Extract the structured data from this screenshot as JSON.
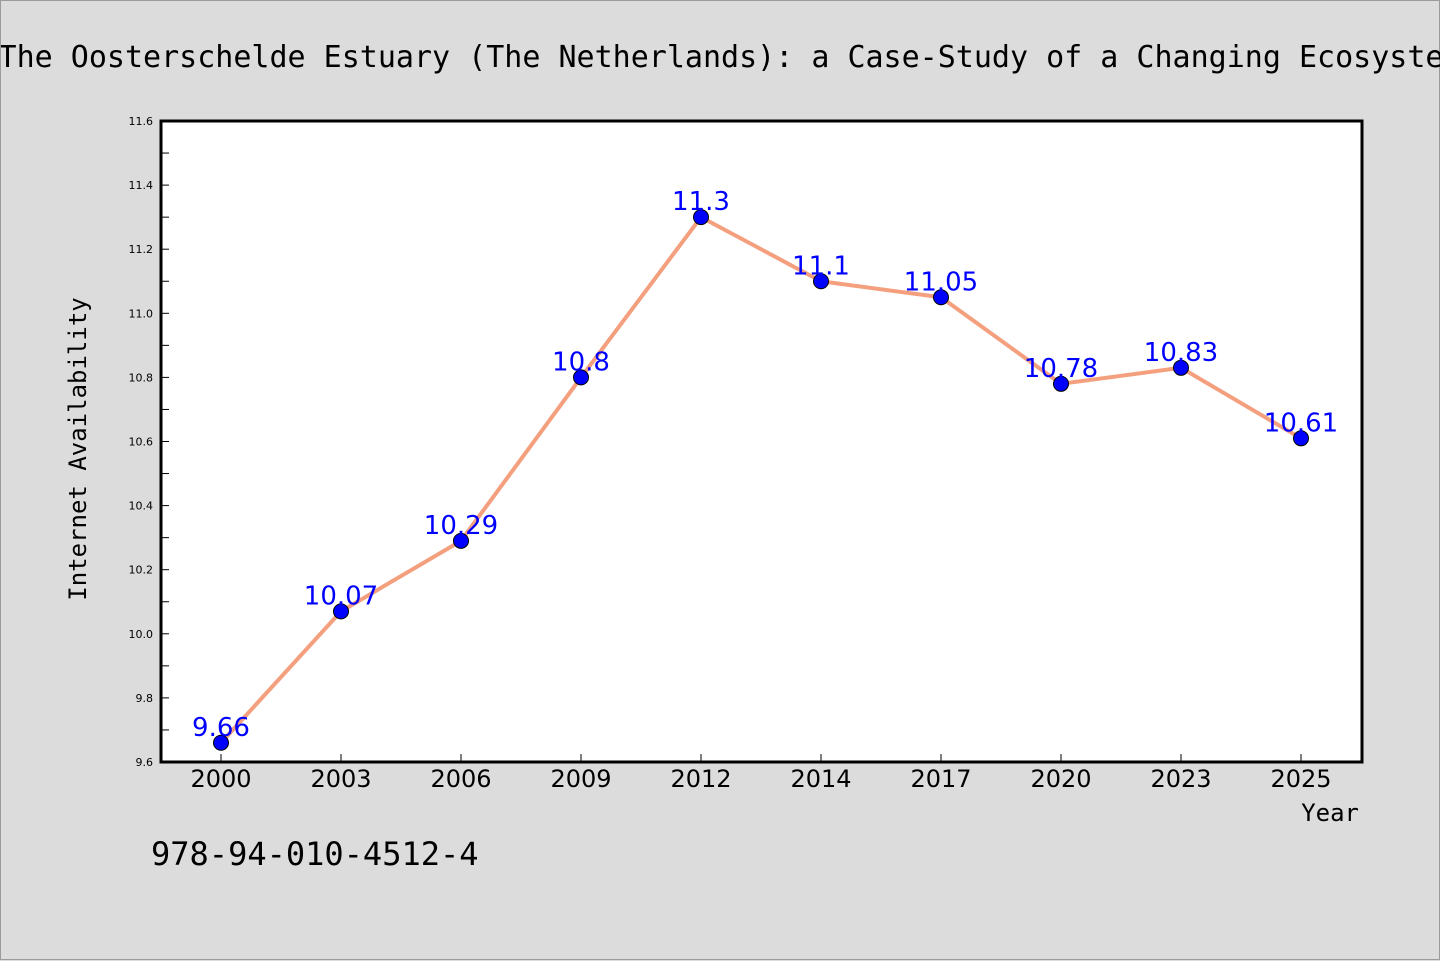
{
  "chart_data": {
    "type": "line",
    "title": "The Oosterschelde Estuary (The Netherlands): a Case-Study of a Changing Ecosyste",
    "xlabel": "Year",
    "ylabel": "Internet Availability",
    "categories": [
      "2000",
      "2003",
      "2006",
      "2009",
      "2012",
      "2014",
      "2017",
      "2020",
      "2023",
      "2025"
    ],
    "series": [
      {
        "values": [
          9.66,
          10.07,
          10.29,
          10.8,
          11.3,
          11.1,
          11.05,
          10.78,
          10.83,
          10.61
        ],
        "data_labels": [
          "9.66",
          "10.07",
          "10.29",
          "10.8",
          "11.3",
          "11.1",
          "11.05",
          "10.78",
          "10.83",
          "10.61"
        ]
      }
    ],
    "ylim": [
      9.6,
      11.6
    ],
    "yticks": [
      "9.6",
      "9.8",
      "10.0",
      "10.2",
      "10.4",
      "10.6",
      "10.8",
      "11.0",
      "11.2",
      "11.4",
      "11.6"
    ],
    "grid": false,
    "legend": "none",
    "colors": {
      "line": "#f4a07e",
      "marker": "#0000ff",
      "label": "#0000ff",
      "background": "#dcdcdc",
      "plot_background": "#ffffff"
    }
  },
  "annotation": {
    "isbn": "978-94-010-4512-4"
  }
}
